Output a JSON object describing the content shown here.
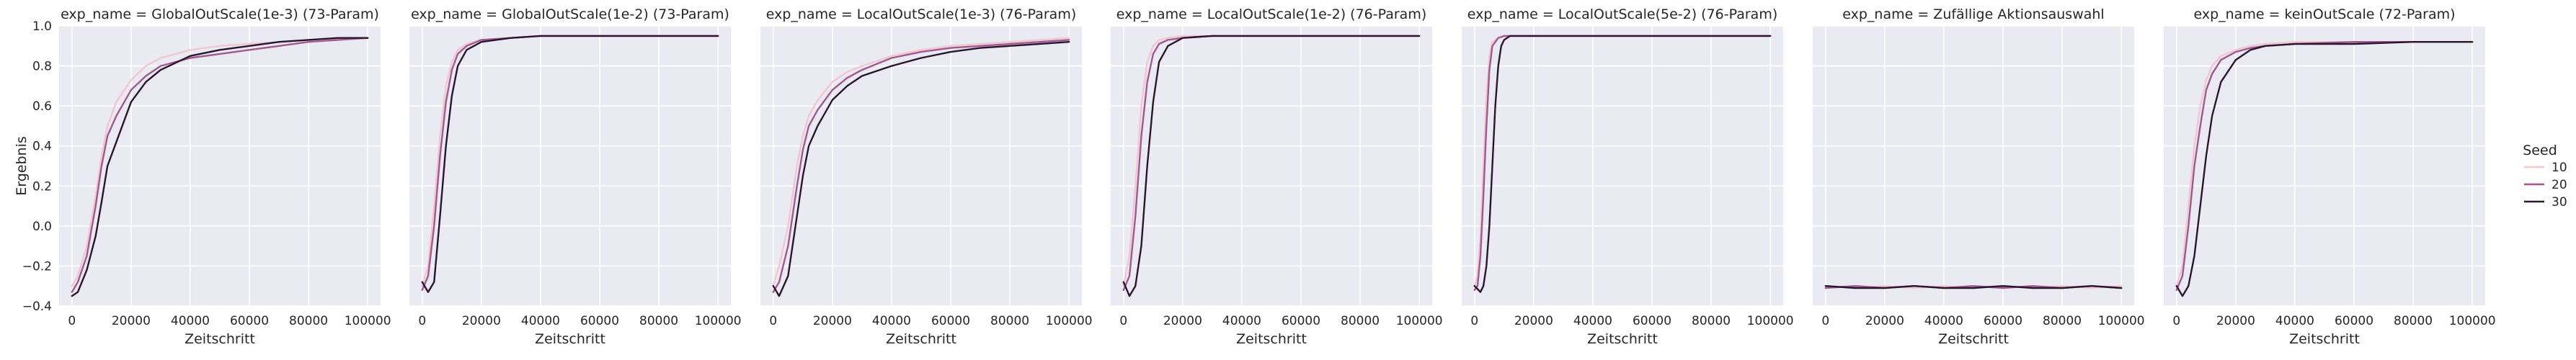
{
  "chart_data": {
    "type": "line",
    "xlabel": "Zeitschritt",
    "ylabel": "Ergebnis",
    "xlim": [
      0,
      100000
    ],
    "ylim": [
      -0.4,
      1.0
    ],
    "x_ticks": [
      0,
      20000,
      40000,
      60000,
      80000,
      100000
    ],
    "y_ticks": [
      -0.4,
      -0.2,
      0.0,
      0.2,
      0.4,
      0.6,
      0.8,
      1.0
    ],
    "y_tick_labels": [
      "−0.4",
      "−0.2",
      "0.0",
      "0.2",
      "0.4",
      "0.6",
      "0.8",
      "1.0"
    ],
    "grid": true,
    "legend": {
      "title": "Seed",
      "placement": "right",
      "entries": [
        {
          "label": "10",
          "color": "#f1c8d0"
        },
        {
          "label": "20",
          "color": "#a3588f"
        },
        {
          "label": "30",
          "color": "#2b1631"
        }
      ]
    },
    "panels": [
      {
        "title": "exp_name = GlobalOutScale(1e-3) (73-Param)",
        "series": [
          {
            "seed": "10",
            "x": [
              0,
              2000,
              5000,
              8000,
              10000,
              12000,
              15000,
              20000,
              25000,
              30000,
              40000,
              50000,
              60000,
              70000,
              80000,
              90000,
              100000
            ],
            "y": [
              -0.3,
              -0.25,
              -0.1,
              0.15,
              0.35,
              0.5,
              0.62,
              0.73,
              0.8,
              0.84,
              0.88,
              0.9,
              0.91,
              0.92,
              0.93,
              0.94,
              0.94
            ]
          },
          {
            "seed": "20",
            "x": [
              0,
              2000,
              5000,
              8000,
              10000,
              12000,
              15000,
              20000,
              25000,
              30000,
              40000,
              50000,
              60000,
              70000,
              80000,
              90000,
              100000
            ],
            "y": [
              -0.33,
              -0.28,
              -0.15,
              0.1,
              0.3,
              0.45,
              0.55,
              0.68,
              0.75,
              0.8,
              0.84,
              0.86,
              0.88,
              0.9,
              0.92,
              0.93,
              0.94
            ]
          },
          {
            "seed": "30",
            "x": [
              0,
              2000,
              5000,
              8000,
              10000,
              12000,
              15000,
              20000,
              25000,
              30000,
              40000,
              50000,
              60000,
              70000,
              80000,
              90000,
              100000
            ],
            "y": [
              -0.35,
              -0.33,
              -0.22,
              -0.05,
              0.12,
              0.3,
              0.42,
              0.62,
              0.72,
              0.78,
              0.85,
              0.88,
              0.9,
              0.92,
              0.93,
              0.94,
              0.94
            ]
          }
        ]
      },
      {
        "title": "exp_name = GlobalOutScale(1e-2) (73-Param)",
        "series": [
          {
            "seed": "10",
            "x": [
              0,
              2000,
              4000,
              6000,
              8000,
              10000,
              12000,
              15000,
              20000,
              30000,
              40000,
              60000,
              80000,
              100000
            ],
            "y": [
              -0.3,
              -0.2,
              0.1,
              0.45,
              0.7,
              0.82,
              0.88,
              0.91,
              0.93,
              0.94,
              0.95,
              0.95,
              0.95,
              0.95
            ]
          },
          {
            "seed": "20",
            "x": [
              0,
              2000,
              4000,
              6000,
              8000,
              10000,
              12000,
              15000,
              20000,
              30000,
              40000,
              60000,
              80000,
              100000
            ],
            "y": [
              -0.32,
              -0.25,
              0.0,
              0.35,
              0.62,
              0.78,
              0.86,
              0.9,
              0.93,
              0.94,
              0.95,
              0.95,
              0.95,
              0.95
            ]
          },
          {
            "seed": "30",
            "x": [
              0,
              2000,
              4000,
              6000,
              8000,
              10000,
              12000,
              15000,
              20000,
              30000,
              40000,
              60000,
              80000,
              100000
            ],
            "y": [
              -0.28,
              -0.33,
              -0.28,
              0.05,
              0.4,
              0.65,
              0.8,
              0.88,
              0.92,
              0.94,
              0.95,
              0.95,
              0.95,
              0.95
            ]
          }
        ]
      },
      {
        "title": "exp_name = LocalOutScale(1e-3) (76-Param)",
        "series": [
          {
            "seed": "10",
            "x": [
              0,
              2000,
              5000,
              8000,
              10000,
              12000,
              15000,
              20000,
              25000,
              30000,
              40000,
              50000,
              60000,
              70000,
              80000,
              90000,
              100000
            ],
            "y": [
              -0.3,
              -0.2,
              0.0,
              0.3,
              0.45,
              0.55,
              0.63,
              0.72,
              0.77,
              0.8,
              0.85,
              0.88,
              0.9,
              0.91,
              0.92,
              0.93,
              0.94
            ]
          },
          {
            "seed": "20",
            "x": [
              0,
              2000,
              5000,
              8000,
              10000,
              12000,
              15000,
              20000,
              25000,
              30000,
              40000,
              50000,
              60000,
              70000,
              80000,
              90000,
              100000
            ],
            "y": [
              -0.33,
              -0.28,
              -0.1,
              0.2,
              0.38,
              0.5,
              0.58,
              0.68,
              0.74,
              0.78,
              0.84,
              0.87,
              0.89,
              0.9,
              0.91,
              0.92,
              0.93
            ]
          },
          {
            "seed": "30",
            "x": [
              0,
              2000,
              5000,
              8000,
              10000,
              12000,
              15000,
              20000,
              25000,
              30000,
              40000,
              50000,
              60000,
              70000,
              80000,
              90000,
              100000
            ],
            "y": [
              -0.3,
              -0.35,
              -0.25,
              0.05,
              0.25,
              0.4,
              0.5,
              0.63,
              0.7,
              0.75,
              0.8,
              0.84,
              0.87,
              0.89,
              0.9,
              0.91,
              0.92
            ]
          }
        ]
      },
      {
        "title": "exp_name = LocalOutScale(1e-2) (76-Param)",
        "series": [
          {
            "seed": "10",
            "x": [
              0,
              2000,
              4000,
              6000,
              8000,
              10000,
              12000,
              15000,
              20000,
              30000,
              40000,
              60000,
              80000,
              100000
            ],
            "y": [
              -0.3,
              -0.15,
              0.2,
              0.6,
              0.82,
              0.9,
              0.93,
              0.94,
              0.95,
              0.95,
              0.95,
              0.95,
              0.95,
              0.95
            ]
          },
          {
            "seed": "20",
            "x": [
              0,
              2000,
              4000,
              6000,
              8000,
              10000,
              12000,
              15000,
              20000,
              30000,
              40000,
              60000,
              80000,
              100000
            ],
            "y": [
              -0.32,
              -0.25,
              0.05,
              0.45,
              0.72,
              0.86,
              0.91,
              0.93,
              0.94,
              0.95,
              0.95,
              0.95,
              0.95,
              0.95
            ]
          },
          {
            "seed": "30",
            "x": [
              0,
              2000,
              4000,
              6000,
              8000,
              10000,
              12000,
              15000,
              20000,
              30000,
              40000,
              60000,
              80000,
              100000
            ],
            "y": [
              -0.28,
              -0.35,
              -0.3,
              -0.1,
              0.3,
              0.62,
              0.82,
              0.9,
              0.94,
              0.95,
              0.95,
              0.95,
              0.95,
              0.95
            ]
          }
        ]
      },
      {
        "title": "exp_name = LocalOutScale(5e-2) (76-Param)",
        "series": [
          {
            "seed": "10",
            "x": [
              0,
              1000,
              2000,
              3000,
              4000,
              5000,
              6000,
              8000,
              10000,
              15000,
              20000,
              40000,
              60000,
              80000,
              100000
            ],
            "y": [
              -0.3,
              -0.25,
              -0.05,
              0.3,
              0.65,
              0.85,
              0.92,
              0.94,
              0.95,
              0.95,
              0.95,
              0.95,
              0.95,
              0.95,
              0.95
            ]
          },
          {
            "seed": "20",
            "x": [
              0,
              1000,
              2000,
              3000,
              4000,
              5000,
              6000,
              8000,
              10000,
              15000,
              20000,
              40000,
              60000,
              80000,
              100000
            ],
            "y": [
              -0.32,
              -0.3,
              -0.15,
              0.15,
              0.5,
              0.78,
              0.9,
              0.94,
              0.95,
              0.95,
              0.95,
              0.95,
              0.95,
              0.95,
              0.95
            ]
          },
          {
            "seed": "30",
            "x": [
              0,
              2000,
              3000,
              4000,
              5000,
              6000,
              7000,
              8000,
              9000,
              10000,
              12000,
              15000,
              20000,
              40000,
              60000,
              80000,
              100000
            ],
            "y": [
              -0.3,
              -0.33,
              -0.3,
              -0.2,
              0.0,
              0.3,
              0.6,
              0.8,
              0.9,
              0.93,
              0.95,
              0.95,
              0.95,
              0.95,
              0.95,
              0.95,
              0.95
            ]
          }
        ]
      },
      {
        "title": "exp_name = Zufällige Aktionsauswahl",
        "series": [
          {
            "seed": "10",
            "x": [
              0,
              10000,
              20000,
              30000,
              40000,
              50000,
              60000,
              70000,
              80000,
              90000,
              100000
            ],
            "y": [
              -0.3,
              -0.31,
              -0.3,
              -0.31,
              -0.3,
              -0.31,
              -0.3,
              -0.31,
              -0.3,
              -0.31,
              -0.3
            ]
          },
          {
            "seed": "20",
            "x": [
              0,
              10000,
              20000,
              30000,
              40000,
              50000,
              60000,
              70000,
              80000,
              90000,
              100000
            ],
            "y": [
              -0.31,
              -0.3,
              -0.31,
              -0.3,
              -0.31,
              -0.3,
              -0.31,
              -0.3,
              -0.31,
              -0.3,
              -0.31
            ]
          },
          {
            "seed": "30",
            "x": [
              0,
              10000,
              20000,
              30000,
              40000,
              50000,
              60000,
              70000,
              80000,
              90000,
              100000
            ],
            "y": [
              -0.3,
              -0.31,
              -0.31,
              -0.3,
              -0.31,
              -0.31,
              -0.3,
              -0.31,
              -0.31,
              -0.3,
              -0.31
            ]
          }
        ]
      },
      {
        "title": "exp_name = keinOutScale (72-Param)",
        "series": [
          {
            "seed": "10",
            "x": [
              0,
              2000,
              4000,
              6000,
              8000,
              10000,
              12000,
              15000,
              20000,
              25000,
              30000,
              40000,
              60000,
              80000,
              100000
            ],
            "y": [
              -0.3,
              -0.2,
              0.1,
              0.4,
              0.6,
              0.73,
              0.8,
              0.85,
              0.88,
              0.9,
              0.91,
              0.92,
              0.92,
              0.92,
              0.92
            ]
          },
          {
            "seed": "20",
            "x": [
              0,
              2000,
              4000,
              6000,
              8000,
              10000,
              12000,
              15000,
              20000,
              25000,
              30000,
              40000,
              60000,
              80000,
              100000
            ],
            "y": [
              -0.32,
              -0.25,
              0.0,
              0.3,
              0.5,
              0.68,
              0.76,
              0.83,
              0.87,
              0.89,
              0.9,
              0.91,
              0.92,
              0.92,
              0.92
            ]
          },
          {
            "seed": "30",
            "x": [
              0,
              2000,
              4000,
              6000,
              8000,
              10000,
              12000,
              15000,
              20000,
              25000,
              30000,
              40000,
              60000,
              80000,
              100000
            ],
            "y": [
              -0.3,
              -0.35,
              -0.3,
              -0.15,
              0.1,
              0.35,
              0.55,
              0.72,
              0.83,
              0.88,
              0.9,
              0.91,
              0.91,
              0.92,
              0.92
            ]
          }
        ]
      }
    ]
  }
}
